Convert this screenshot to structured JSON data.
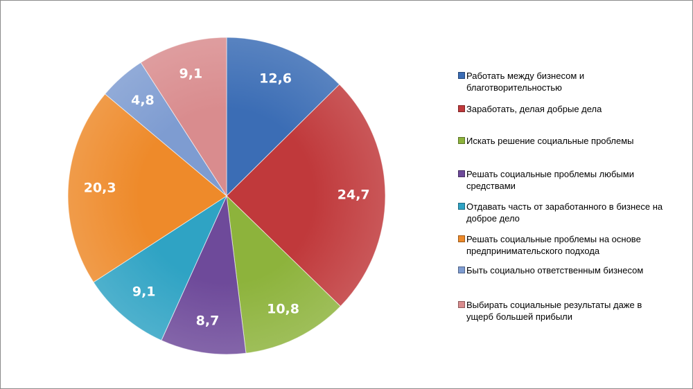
{
  "chart_data": {
    "type": "pie",
    "title": "",
    "start": "top",
    "direction": "clockwise",
    "legend_position": "right",
    "categories": [
      "Работать между бизнесом и благотворительностью",
      "Заработать, делая добрые дела",
      "Искать решение социальные проблемы",
      "Решать социальные проблемы любыми средствами",
      "Отдавать часть от заработанного в бизнесе на доброе дело",
      "Решать социальные проблемы на основе предпринимательского подхода",
      "Быть социально ответственным бизнесом",
      "Выбирать социальные результаты даже в ущерб большей прибыли"
    ],
    "values": [
      12.6,
      24.7,
      10.8,
      8.7,
      9.1,
      20.3,
      4.8,
      9.1
    ],
    "data_labels": [
      "12,6",
      "24,7",
      "10,8",
      "8,7",
      "9,1",
      "20,3",
      "4,8",
      "9,1"
    ],
    "colors": [
      "#3b6db5",
      "#c0393b",
      "#8db33c",
      "#6e4a9a",
      "#2fa3c4",
      "#ee8a2a",
      "#7e9cd1",
      "#d98c8e"
    ]
  }
}
